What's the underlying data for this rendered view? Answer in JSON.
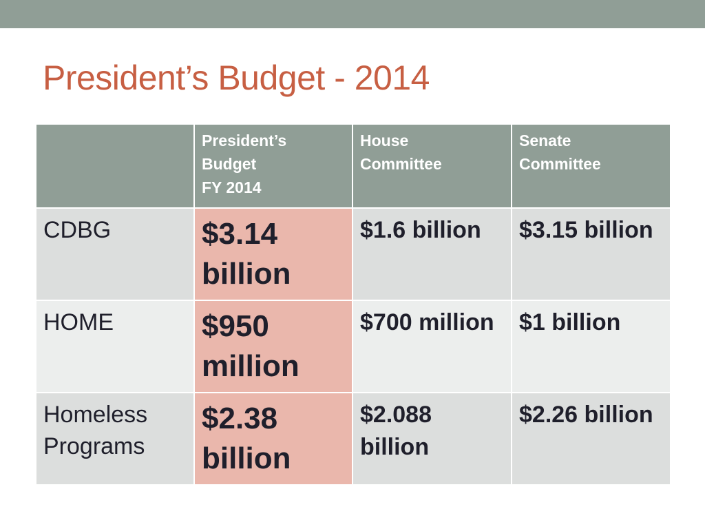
{
  "slide": {
    "title": "President’s Budget - 2014"
  },
  "table": {
    "headers": [
      {
        "lines": [
          ""
        ]
      },
      {
        "lines": [
          "President’s",
          "Budget",
          "FY 2014"
        ]
      },
      {
        "lines": [
          "House",
          "Committee"
        ]
      },
      {
        "lines": [
          "Senate",
          "Committee"
        ]
      }
    ],
    "rows": [
      {
        "label": "CDBG",
        "president": "$3.14 billion",
        "house": "$1.6 billion",
        "senate": "$3.15 billion"
      },
      {
        "label": "HOME",
        "president": "$950 million",
        "house": "$700 million",
        "senate": "$1 billion"
      },
      {
        "label": "Homeless Programs",
        "president": "$2.38 billion",
        "house": "$2.088 billion",
        "senate": "$2.26 billion"
      }
    ]
  },
  "colors": {
    "title": "#c75f43",
    "header_bg": "#909e96",
    "highlight_bg": "#eab7ac",
    "row_odd_bg": "#dcdedd",
    "row_even_bg": "#eceeed"
  }
}
